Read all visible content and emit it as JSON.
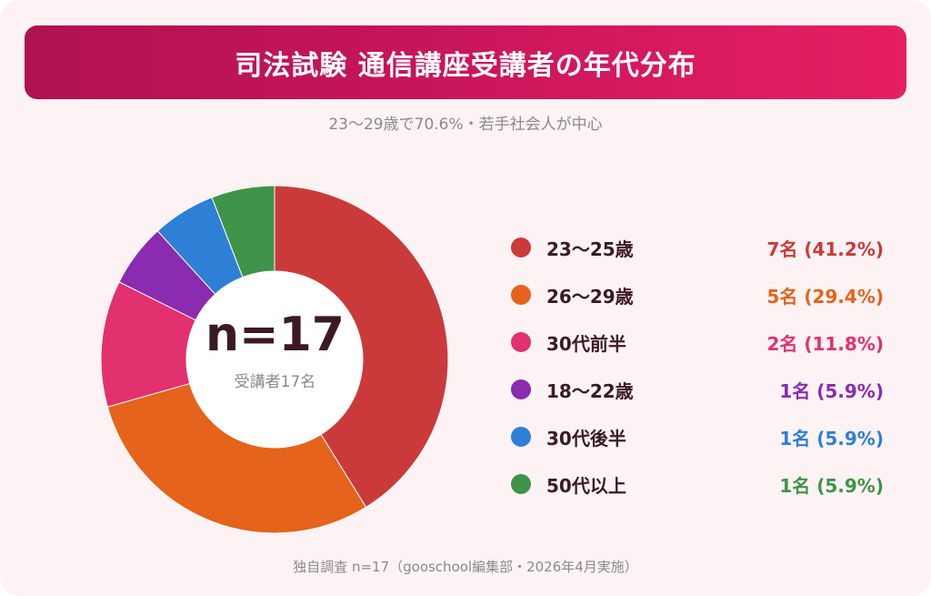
{
  "header": {
    "title": "司法試験 通信講座受講者の年代分布",
    "subtitle": "23〜29歳で70.6%・若手社会人が中心"
  },
  "center": {
    "n_label": "n=17",
    "sub_label": "受講者17名"
  },
  "footnote": "独自調査 n=17（gooschool編集部・2026年4月実施）",
  "colors": {
    "card_background": "#fdf2f4",
    "title_gradient_start": "#b0124f",
    "title_gradient_end": "#e61e63"
  },
  "chart_data": {
    "type": "pie",
    "style": "donut",
    "total": 17,
    "slices": [
      {
        "label": "23〜25歳",
        "count": 7,
        "percent": 41.2,
        "value_label": "7名 (41.2%)",
        "color": "#cb3a3a"
      },
      {
        "label": "26〜29歳",
        "count": 5,
        "percent": 29.4,
        "value_label": "5名 (29.4%)",
        "color": "#e5631b"
      },
      {
        "label": "30代前半",
        "count": 2,
        "percent": 11.8,
        "value_label": "2名 (11.8%)",
        "color": "#e3306f"
      },
      {
        "label": "18〜22歳",
        "count": 1,
        "percent": 5.9,
        "value_label": "1名 (5.9%)",
        "color": "#8a2bb0"
      },
      {
        "label": "30代後半",
        "count": 1,
        "percent": 5.9,
        "value_label": "1名 (5.9%)",
        "color": "#2e7fd6"
      },
      {
        "label": "50代以上",
        "count": 1,
        "percent": 5.9,
        "value_label": "1名 (5.9%)",
        "color": "#3e9448"
      }
    ],
    "legend_position": "right"
  }
}
